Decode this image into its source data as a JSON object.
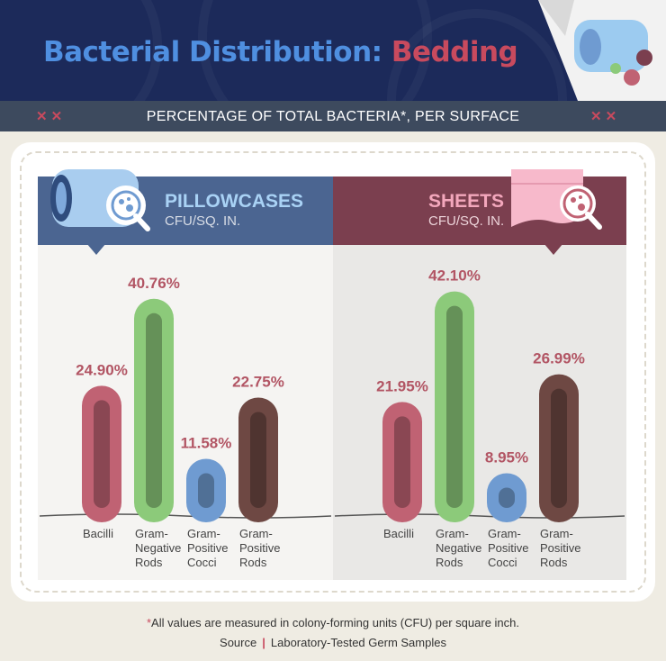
{
  "header": {
    "title_part1": "Bacterial Distribution:",
    "title_part2": "Bedding",
    "subtitle": "PERCENTAGE OF TOTAL BACTERIA*, PER SURFACE"
  },
  "colors": {
    "header_bg": "#1c2a5a",
    "title_blue": "#4f8fe0",
    "title_red": "#c84a5e",
    "pillowcases_panel": "#4b6591",
    "sheets_panel": "#7b3f4f",
    "bacilli": "#c06273",
    "gram_negative_rods": "#8cca7a",
    "gram_positive_cocci": "#6f9bd1",
    "gram_positive_rods": "#6e4843"
  },
  "panels": {
    "pillowcases": {
      "title": "PILLOWCASES",
      "unit": "CFU/SQ. IN."
    },
    "sheets": {
      "title": "SHEETS",
      "unit": "CFU/SQ. IN."
    }
  },
  "chart_data": [
    {
      "type": "bar",
      "title": "PILLOWCASES",
      "subtitle": "CFU/SQ. IN.",
      "categories": [
        "Bacilli",
        "Gram-Negative Rods",
        "Gram-Positive Cocci",
        "Gram-Positive Rods"
      ],
      "values": [
        24.9,
        40.76,
        11.58,
        22.75
      ],
      "labels": [
        "24.90%",
        "40.76%",
        "11.58%",
        "22.75%"
      ],
      "colors": [
        "#c06273",
        "#8cca7a",
        "#6f9bd1",
        "#6e4843"
      ],
      "ylim": [
        0,
        45
      ],
      "grid": false
    },
    {
      "type": "bar",
      "title": "SHEETS",
      "subtitle": "CFU/SQ. IN.",
      "categories": [
        "Bacilli",
        "Gram-Negative Rods",
        "Gram-Positive Cocci",
        "Gram-Positive Rods"
      ],
      "values": [
        21.95,
        42.1,
        8.95,
        26.99
      ],
      "labels": [
        "21.95%",
        "42.10%",
        "8.95%",
        "26.99%"
      ],
      "colors": [
        "#c06273",
        "#8cca7a",
        "#6f9bd1",
        "#6e4843"
      ],
      "ylim": [
        0,
        45
      ],
      "grid": false
    }
  ],
  "category_lines": [
    [
      "Bacilli"
    ],
    [
      "Gram-",
      "Negative",
      "Rods"
    ],
    [
      "Gram-",
      "Positive",
      "Cocci"
    ],
    [
      "Gram-",
      "Positive",
      "Rods"
    ]
  ],
  "footer": {
    "note_star": "*",
    "note": "All values are measured in colony-forming units (CFU) per square inch.",
    "source_label": "Source",
    "source_sep": "|",
    "source_text": "Laboratory-Tested Germ Samples"
  }
}
